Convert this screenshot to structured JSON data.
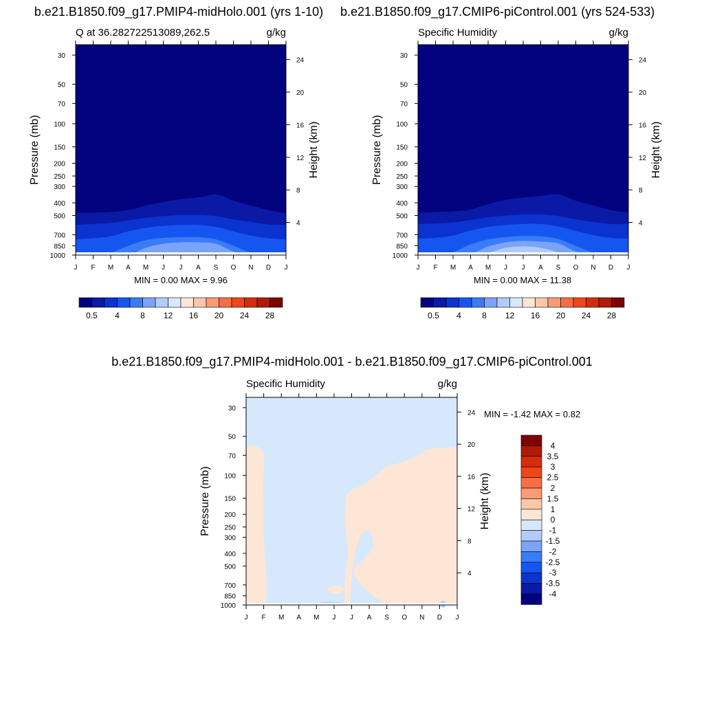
{
  "colors": {
    "abs_levels": [
      "#03037f",
      "#0a1aa6",
      "#0b33d0",
      "#1656f0",
      "#3a7bf7",
      "#7aa4f8",
      "#b2cbf9",
      "#d6e8fb",
      "#fde6d6",
      "#fbc6aa",
      "#f99b75",
      "#f76e45",
      "#ef4619",
      "#d52c0c",
      "#b11a06",
      "#7e0303"
    ],
    "diff_levels": [
      "#03037f",
      "#0a1aa6",
      "#0b33d0",
      "#1656f0",
      "#3a7bf7",
      "#7aa4f8",
      "#b2cbf9",
      "#d6e8fb",
      "#fde6d6",
      "#fbc6aa",
      "#f99b75",
      "#f76e45",
      "#ef4619",
      "#d52c0c",
      "#b11a06",
      "#7e0303"
    ]
  },
  "axes": {
    "months": [
      "J",
      "F",
      "M",
      "A",
      "M",
      "J",
      "J",
      "A",
      "S",
      "O",
      "N",
      "D",
      "J"
    ],
    "pressure_ticks": [
      "30",
      "50",
      "70",
      "100",
      "150",
      "200",
      "250",
      "300",
      "400",
      "500",
      "700",
      "850",
      "1000"
    ],
    "height_ticks": [
      "24",
      "20",
      "16",
      "12",
      "8",
      "4"
    ],
    "ylabel": "Pressure (mb)",
    "ylabel_right": "Height (km)",
    "units": "g/kg"
  },
  "panel1": {
    "title": "b.e21.B1850.f09_g17.PMIP4-midHolo.001 (yrs 1-10)",
    "subtitle": "Q at 36.282722513089,262.5",
    "units": "g/kg",
    "minmax": "MIN =   0.00 MAX =   9.96"
  },
  "panel2": {
    "title": "b.e21.B1850.f09_g17.CMIP6-piControl.001 (yrs 524-533)",
    "subtitle": "Specific Humidity",
    "units": "g/kg",
    "minmax": "MIN =   0.00 MAX =  11.38"
  },
  "panel3": {
    "title": "b.e21.B1850.f09_g17.PMIP4-midHolo.001 - b.e21.B1850.f09_g17.CMIP6-piControl.001",
    "subtitle": "Specific Humidity",
    "units": "g/kg",
    "minmax": "MIN =  -1.42 MAX =   0.82"
  },
  "colorbar_abs": {
    "labels": [
      "0.5",
      "4",
      "8",
      "12",
      "16",
      "20",
      "24",
      "28"
    ]
  },
  "colorbar_diff": {
    "labels": [
      "4",
      "3.5",
      "3",
      "2.5",
      "2",
      "1.5",
      "1",
      "0",
      "-1",
      "-1.5",
      "-2",
      "-2.5",
      "-3",
      "-3.5",
      "-4"
    ]
  },
  "chart_data": [
    {
      "type": "heatmap",
      "title": "b.e21.B1850.f09_g17.PMIP4-midHolo.001 (yrs 1-10)",
      "subtitle": "Q at 36.282722513089,262.5",
      "xlabel": "",
      "ylabel": "Pressure (mb)",
      "ylabel_right": "Height (km)",
      "units": "g/kg",
      "x": [
        "J",
        "F",
        "M",
        "A",
        "M",
        "J",
        "J",
        "A",
        "S",
        "O",
        "N",
        "D",
        "J"
      ],
      "y_log_scale": true,
      "ylim": [
        1000,
        25
      ],
      "min": 0.0,
      "max": 9.96,
      "contour_boundaries_hPa": [
        {
          "level": 0.5,
          "values": [
            480,
            475,
            470,
            455,
            420,
            395,
            375,
            365,
            345,
            385,
            420,
            455,
            480
          ]
        },
        {
          "level": 2,
          "values": [
            590,
            580,
            570,
            545,
            520,
            505,
            495,
            495,
            505,
            535,
            560,
            585,
            590
          ]
        },
        {
          "level": 4,
          "values": [
            760,
            745,
            720,
            660,
            620,
            600,
            590,
            590,
            610,
            660,
            710,
            745,
            760
          ]
        },
        {
          "level": 6,
          "values": [
            1000,
            1000,
            960,
            850,
            770,
            740,
            730,
            730,
            760,
            850,
            960,
            1000,
            1000
          ]
        },
        {
          "level": 8,
          "values": [
            1000,
            1000,
            1000,
            1000,
            880,
            820,
            800,
            800,
            820,
            940,
            1000,
            1000,
            1000
          ]
        }
      ]
    },
    {
      "type": "heatmap",
      "title": "b.e21.B1850.f09_g17.CMIP6-piControl.001 (yrs 524-533)",
      "subtitle": "Specific Humidity",
      "xlabel": "",
      "ylabel": "Pressure (mb)",
      "ylabel_right": "Height (km)",
      "units": "g/kg",
      "x": [
        "J",
        "F",
        "M",
        "A",
        "M",
        "J",
        "J",
        "A",
        "S",
        "O",
        "N",
        "D",
        "J"
      ],
      "y_log_scale": true,
      "ylim": [
        1000,
        25
      ],
      "min": 0.0,
      "max": 11.38,
      "contour_boundaries_hPa": [
        {
          "level": 0.5,
          "values": [
            475,
            470,
            465,
            450,
            410,
            380,
            365,
            355,
            345,
            385,
            420,
            455,
            475
          ]
        },
        {
          "level": 2,
          "values": [
            580,
            575,
            565,
            540,
            515,
            500,
            490,
            490,
            505,
            535,
            560,
            580,
            580
          ]
        },
        {
          "level": 4,
          "values": [
            750,
            740,
            710,
            650,
            610,
            590,
            580,
            580,
            605,
            655,
            705,
            740,
            750
          ]
        },
        {
          "level": 6,
          "values": [
            1000,
            1000,
            950,
            830,
            760,
            730,
            715,
            720,
            755,
            850,
            960,
            1000,
            1000
          ]
        },
        {
          "level": 8,
          "values": [
            1000,
            1000,
            1000,
            980,
            860,
            800,
            780,
            790,
            815,
            940,
            1000,
            1000,
            1000
          ]
        },
        {
          "level": 10,
          "values": [
            1000,
            1000,
            1000,
            1000,
            960,
            880,
            860,
            880,
            950,
            1000,
            1000,
            1000,
            1000
          ]
        }
      ]
    },
    {
      "type": "heatmap",
      "title": "b.e21.B1850.f09_g17.PMIP4-midHolo.001 - b.e21.B1850.f09_g17.CMIP6-piControl.001",
      "subtitle": "Specific Humidity",
      "xlabel": "",
      "ylabel": "Pressure (mb)",
      "ylabel_right": "Height (km)",
      "units": "g/kg",
      "x": [
        "J",
        "F",
        "M",
        "A",
        "M",
        "J",
        "J",
        "A",
        "S",
        "O",
        "N",
        "D",
        "J"
      ],
      "y_log_scale": true,
      "ylim": [
        1000,
        25
      ],
      "min": -1.42,
      "max": 0.82,
      "colorbar_levels": [
        -4,
        -3.5,
        -3,
        -2.5,
        -2,
        -1.5,
        -1,
        0,
        1,
        1.5,
        2,
        2.5,
        3,
        3.5,
        4
      ],
      "regions": [
        {
          "range": "0 to 1",
          "description": "positive band Jan-Feb from surface to ~60 mb; region from Jun to Jan above ~130 mb; region Jul-Sep below ~300 mb; Oct-Jan from ~70 mb down"
        },
        {
          "range": "-1 to 0",
          "description": "remaining domain, incl. Feb-Jun column and upper-left"
        },
        {
          "range": "-1.5 to -1",
          "description": "small patches near surface around May-Jun and ~740 mb late June"
        }
      ]
    }
  ]
}
